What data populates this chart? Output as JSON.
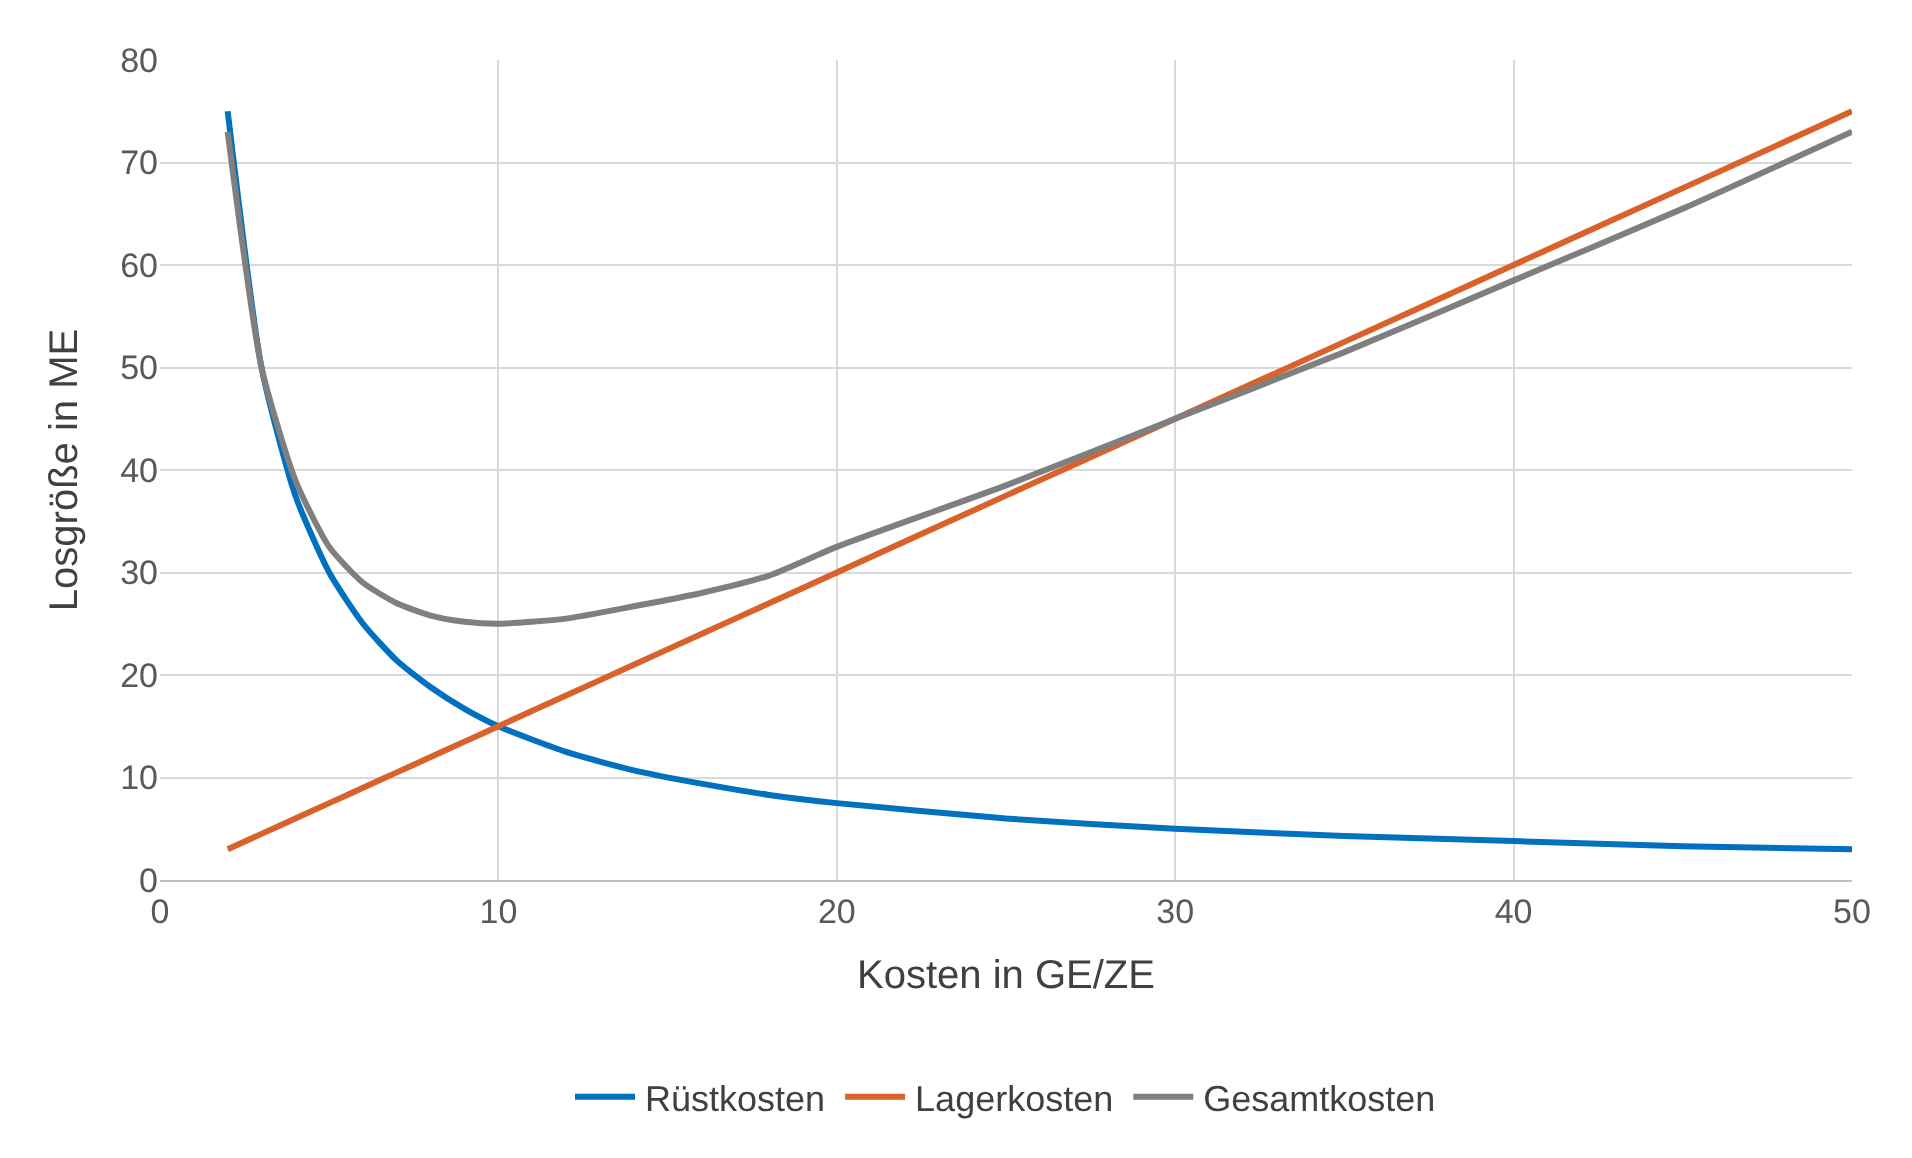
{
  "chart_data": {
    "type": "line",
    "xlabel": "Kosten in GE/ZE",
    "ylabel": "Losgröße in ME",
    "x": [
      2,
      3,
      4,
      5,
      6,
      7,
      8,
      9,
      10,
      12,
      14,
      16,
      18,
      20,
      25,
      30,
      35,
      40,
      45,
      50
    ],
    "series": [
      {
        "name": "Rüstkosten",
        "color": "#0070c0",
        "values": [
          75,
          50,
          37.5,
          30,
          25,
          21.4,
          18.8,
          16.7,
          15,
          12.5,
          10.7,
          9.4,
          8.3,
          7.5,
          6,
          5,
          4.3,
          3.8,
          3.3,
          3
        ]
      },
      {
        "name": "Lagerkosten",
        "color": "#d9622b",
        "values": [
          3,
          4.5,
          6,
          7.5,
          9,
          10.5,
          12,
          13.5,
          15,
          18,
          21,
          24,
          27,
          30,
          37.5,
          45,
          52.5,
          60,
          67.5,
          75
        ]
      },
      {
        "name": "Gesamtkosten",
        "color": "#7f7f7f",
        "values": [
          73,
          50,
          39,
          32.5,
          29,
          27,
          25.8,
          25.2,
          25,
          25.5,
          26.7,
          28,
          29.7,
          32.5,
          38.5,
          45,
          51.5,
          58.5,
          65.5,
          73
        ]
      }
    ],
    "xlim": [
      0,
      50
    ],
    "xticks": [
      0,
      10,
      20,
      30,
      40,
      50
    ],
    "ylim": [
      0,
      80
    ],
    "yticks": [
      0,
      10,
      20,
      30,
      40,
      50,
      60,
      70,
      80
    ],
    "grid": true,
    "legend": "bottom",
    "marker": "none",
    "line_style": "solid"
  }
}
